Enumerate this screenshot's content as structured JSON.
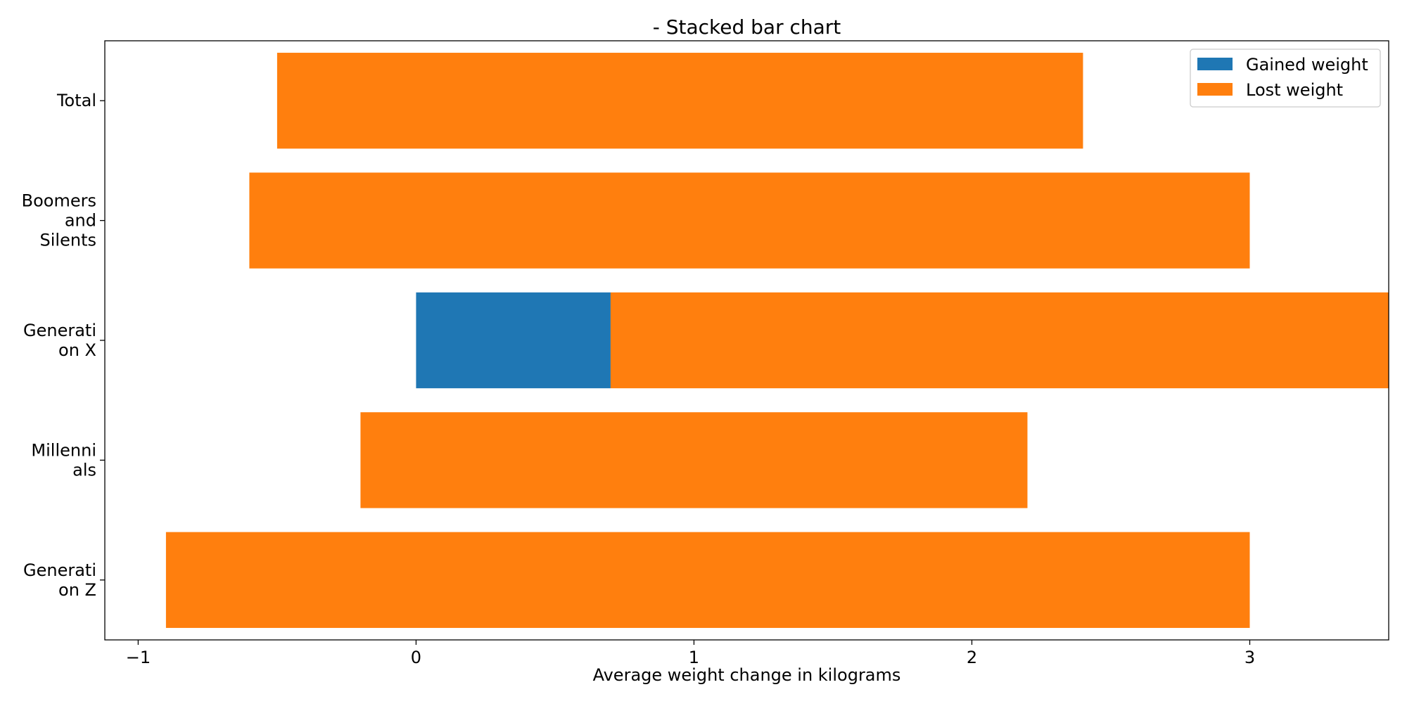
{
  "chart_data": {
    "type": "bar",
    "orientation": "horizontal",
    "stacked": true,
    "title": "- Stacked bar chart",
    "xlabel": "Average weight change in kilograms",
    "ylabel": "",
    "categories": [
      [
        "Total"
      ],
      [
        "Boomers",
        "and",
        "Silents"
      ],
      [
        "Generati",
        "on X"
      ],
      [
        "Millenni",
        "als"
      ],
      [
        "Generati",
        "on Z"
      ]
    ],
    "series": [
      {
        "name": "Gained weight",
        "color": "#1f77b4",
        "start": [
          0,
          0,
          0,
          0,
          0
        ],
        "values": [
          0,
          0,
          0.7,
          0,
          0
        ]
      },
      {
        "name": "Lost weight",
        "color": "#ff7f0e",
        "start": [
          -0.5,
          -0.6,
          0.7,
          -0.2,
          -0.9
        ],
        "values": [
          2.9,
          3.6,
          2.8,
          2.4,
          3.9
        ]
      }
    ],
    "xlim": [
      -1.12,
      3.5
    ],
    "xticks": [
      -1,
      0,
      1,
      2,
      3
    ],
    "xtick_labels": [
      "−1",
      "0",
      "1",
      "2",
      "3"
    ],
    "grid": false,
    "legend_position": "top-right"
  }
}
